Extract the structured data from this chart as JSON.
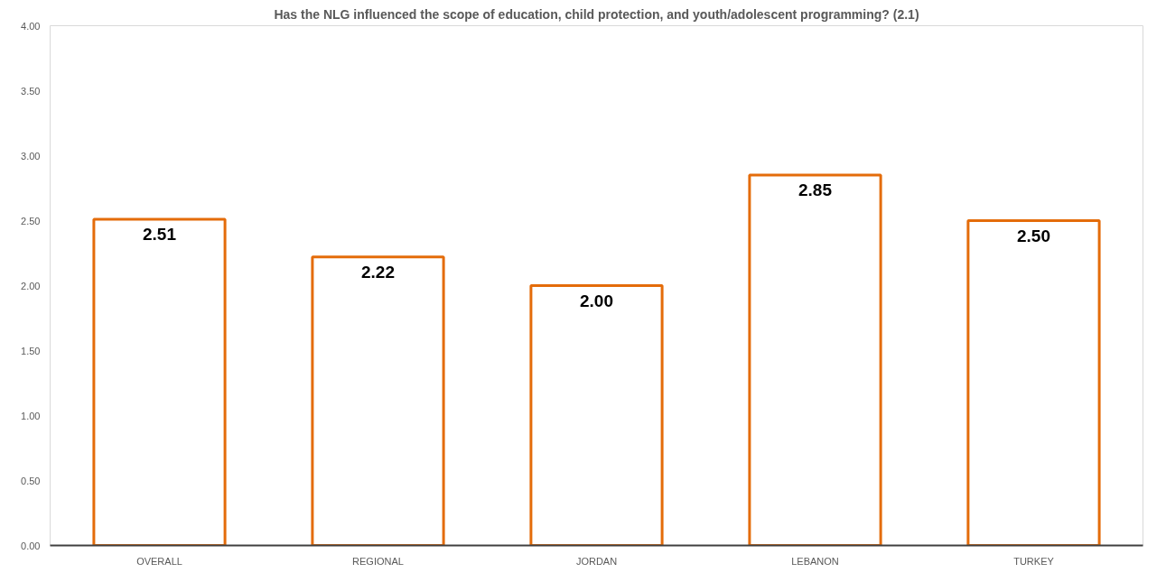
{
  "chart_data": {
    "type": "bar",
    "title": "Has the NLG influenced the scope of education, child protection, and youth/adolescent programming? (2.1)",
    "categories": [
      "OVERALL",
      "REGIONAL",
      "JORDAN",
      "LEBANON",
      "TURKEY"
    ],
    "values": [
      2.51,
      2.22,
      2.0,
      2.85,
      2.5
    ],
    "color": "#e46c0a",
    "ylim": [
      0,
      4
    ],
    "yticks": [
      {
        "value": 0,
        "label": "0.00"
      },
      {
        "value": 0.5,
        "label": "0.50"
      },
      {
        "value": 1,
        "label": "1.00"
      },
      {
        "value": 1.5,
        "label": "1.50"
      },
      {
        "value": 2,
        "label": "2.00"
      },
      {
        "value": 2.5,
        "label": "2.50"
      },
      {
        "value": 3,
        "label": "3.00"
      },
      {
        "value": 3.5,
        "label": "3.50"
      },
      {
        "value": 4,
        "label": "4.00"
      }
    ],
    "value_labels": [
      "2.51",
      "2.22",
      "2.00",
      "2.85",
      "2.50"
    ],
    "grid": false
  }
}
